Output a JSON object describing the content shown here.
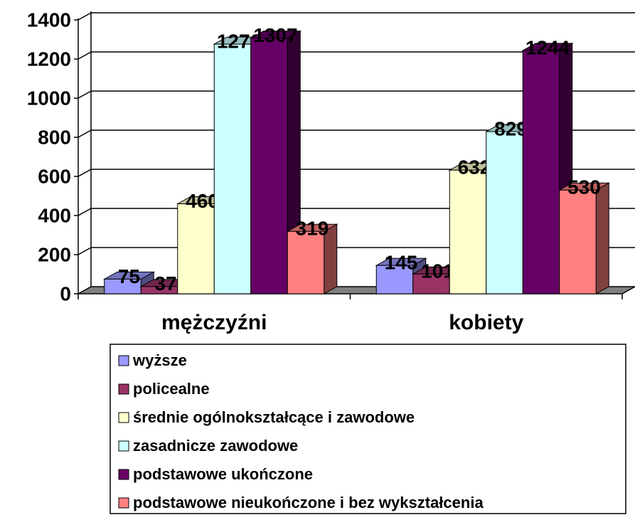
{
  "chart_data": {
    "type": "bar3d",
    "categories": [
      "mężczyźni",
      "kobiety"
    ],
    "series": [
      {
        "name": "wyższe",
        "color": "#9999ff",
        "values": [
          75,
          145
        ]
      },
      {
        "name": "policealne",
        "color": "#993366",
        "values": [
          37,
          101
        ]
      },
      {
        "name": "średnie ogólnokształcące i zawodowe",
        "color": "#ffffcc",
        "values": [
          460,
          632
        ]
      },
      {
        "name": "zasadnicze zawodowe",
        "color": "#ccffff",
        "values": [
          1276,
          829
        ]
      },
      {
        "name": "podstawowe ukończone",
        "color": "#660066",
        "values": [
          1307,
          1244
        ]
      },
      {
        "name": "podstawowe nieukończone i bez wykształcenia",
        "color": "#ff8080",
        "values": [
          319,
          530
        ]
      }
    ],
    "ylim": [
      0,
      1400
    ],
    "yticks": [
      0,
      200,
      400,
      600,
      800,
      1000,
      1200,
      1400
    ],
    "grid": true,
    "legend": "bottom"
  }
}
